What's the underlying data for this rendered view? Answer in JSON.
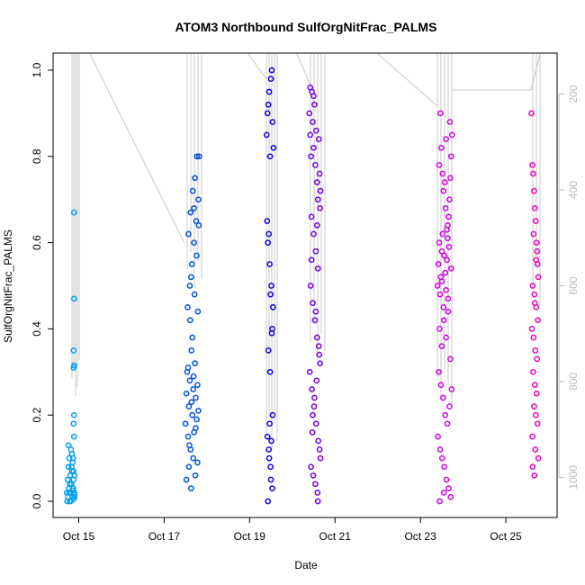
{
  "chart_data": {
    "type": "scatter",
    "title": "ATOM3 Northbound SulfOrgNitFrac_PALMS",
    "xlabel": "Date",
    "ylabel": "SulfOrgNitFrac_PALMS",
    "x_ticks": [
      "Oct 15",
      "Oct 17",
      "Oct 19",
      "Oct 21",
      "Oct 23",
      "Oct 25"
    ],
    "x_tick_days": [
      15,
      17,
      19,
      21,
      23,
      25
    ],
    "xlim_days": [
      14.4,
      26.2
    ],
    "y_ticks": [
      "0.0",
      "0.2",
      "0.4",
      "0.6",
      "0.8",
      "1.0"
    ],
    "y_tick_values": [
      0,
      0.2,
      0.4,
      0.6,
      0.8,
      1.0
    ],
    "ylim": [
      0,
      1.0
    ],
    "y2_ticks": [
      "200",
      "400",
      "600",
      "800",
      "1000"
    ],
    "y2_tick_values": [
      200,
      400,
      600,
      800,
      1000
    ],
    "y2lim": [
      1050,
      150
    ],
    "y2_label": "",
    "grid": false,
    "legend": "none",
    "secondary_line_color": "#c8c8c8",
    "series": [
      {
        "color": "#00a0f0",
        "x": [
          14.72,
          14.74,
          14.75,
          14.76,
          14.77,
          14.78,
          14.79,
          14.8,
          14.81,
          14.82,
          14.83,
          14.84,
          14.85,
          14.86,
          14.87,
          14.88,
          14.89,
          14.9,
          14.73,
          14.79,
          14.84,
          14.88,
          14.76,
          14.81,
          14.86,
          14.9,
          14.78,
          14.83,
          14.87,
          14.89,
          14.88,
          14.89,
          14.88,
          14.89,
          14.88,
          14.89,
          14.89,
          14.9,
          14.88,
          14.86
        ],
        "y": [
          0.02,
          0.05,
          0.01,
          0.08,
          0.03,
          0.1,
          0.0,
          0.06,
          0.02,
          0.12,
          0.04,
          0.07,
          0.01,
          0.09,
          0.03,
          0.05,
          0.02,
          0.01,
          0.0,
          0.04,
          0.11,
          0.07,
          0.13,
          0.0,
          0.03,
          0.06,
          0.02,
          0.08,
          0.1,
          0.15,
          0.18,
          0.2,
          0.31,
          0.315,
          0.35,
          0.47,
          0.67,
          0.015,
          0.005,
          0.025
        ]
      },
      {
        "color": "#0050e0",
        "x": [
          17.5,
          17.52,
          17.54,
          17.56,
          17.58,
          17.6,
          17.62,
          17.64,
          17.66,
          17.68,
          17.7,
          17.72,
          17.74,
          17.76,
          17.78,
          17.8,
          17.55,
          17.6,
          17.65,
          17.7,
          17.75,
          17.8,
          17.52,
          17.58,
          17.63,
          17.68,
          17.73,
          17.78,
          17.57,
          17.62,
          17.67,
          17.72,
          17.77,
          17.82,
          17.61,
          17.66,
          17.71,
          17.76,
          17.81,
          17.59,
          17.64,
          17.69,
          17.74,
          17.79,
          17.56,
          17.63,
          17.7
        ],
        "y": [
          0.18,
          0.25,
          0.3,
          0.15,
          0.22,
          0.28,
          0.12,
          0.35,
          0.2,
          0.26,
          0.16,
          0.32,
          0.24,
          0.19,
          0.27,
          0.21,
          0.45,
          0.5,
          0.55,
          0.6,
          0.65,
          0.7,
          0.05,
          0.08,
          0.03,
          0.1,
          0.06,
          0.09,
          0.62,
          0.67,
          0.72,
          0.75,
          0.8,
          0.8,
          0.42,
          0.38,
          0.48,
          0.57,
          0.64,
          0.13,
          0.23,
          0.29,
          0.17,
          0.44,
          0.31,
          0.52,
          0.68
        ]
      },
      {
        "color": "#1000e0",
        "x": [
          19.4,
          19.42,
          19.44,
          19.46,
          19.48,
          19.5,
          19.52,
          19.54,
          19.56,
          19.43,
          19.47,
          19.51,
          19.55,
          19.41,
          19.45,
          19.49,
          19.53,
          19.44,
          19.48,
          19.52,
          19.42,
          19.46,
          19.5,
          19.54,
          19.45,
          19.49,
          19.53,
          19.43,
          19.47,
          19.51
        ],
        "y": [
          0.85,
          0.9,
          0.92,
          0.95,
          0.8,
          0.98,
          1.0,
          0.88,
          0.82,
          0.6,
          0.55,
          0.5,
          0.45,
          0.65,
          0.62,
          0.48,
          0.4,
          0.35,
          0.3,
          0.39,
          0.15,
          0.1,
          0.05,
          0.2,
          0.12,
          0.08,
          0.03,
          0.0,
          0.18,
          0.14
        ]
      },
      {
        "color": "#7000e8",
        "x": [
          20.4,
          20.42,
          20.44,
          20.46,
          20.48,
          20.5,
          20.52,
          20.54,
          20.56,
          20.58,
          20.6,
          20.62,
          20.64,
          20.66,
          20.45,
          20.5,
          20.55,
          20.6,
          20.65,
          20.43,
          20.48,
          20.53,
          20.58,
          20.63,
          20.41,
          20.46,
          20.51,
          20.56,
          20.61,
          20.66,
          20.44,
          20.49,
          20.54,
          20.59,
          20.64,
          20.47,
          20.52,
          20.57,
          20.62,
          20.42,
          20.5,
          20.58,
          20.45,
          20.55,
          20.65,
          20.48,
          20.6
        ],
        "y": [
          0.9,
          0.85,
          0.8,
          0.95,
          0.88,
          0.82,
          0.92,
          0.78,
          0.86,
          0.74,
          0.7,
          0.84,
          0.76,
          0.72,
          0.66,
          0.62,
          0.58,
          0.54,
          0.68,
          0.5,
          0.46,
          0.42,
          0.38,
          0.34,
          0.3,
          0.26,
          0.22,
          0.18,
          0.14,
          0.1,
          0.08,
          0.06,
          0.04,
          0.02,
          0.12,
          0.16,
          0.24,
          0.28,
          0.36,
          0.96,
          0.94,
          0.64,
          0.56,
          0.44,
          0.32,
          0.2,
          0.0
        ]
      },
      {
        "color": "#d000e8",
        "x": [
          23.4,
          23.42,
          23.44,
          23.46,
          23.48,
          23.5,
          23.52,
          23.54,
          23.56,
          23.58,
          23.6,
          23.62,
          23.64,
          23.66,
          23.68,
          23.7,
          23.72,
          23.74,
          23.45,
          23.5,
          23.55,
          23.6,
          23.65,
          23.7,
          23.43,
          23.48,
          23.53,
          23.58,
          23.63,
          23.68,
          23.73,
          23.41,
          23.46,
          23.51,
          23.56,
          23.61,
          23.66,
          23.71,
          23.44,
          23.49,
          23.54,
          23.59,
          23.64,
          23.69,
          23.47,
          23.52,
          23.57,
          23.62,
          23.67,
          23.72,
          23.45,
          23.55,
          23.65,
          23.5,
          23.6
        ],
        "y": [
          0.5,
          0.55,
          0.6,
          0.48,
          0.52,
          0.58,
          0.62,
          0.45,
          0.57,
          0.53,
          0.49,
          0.56,
          0.61,
          0.66,
          0.7,
          0.75,
          0.8,
          0.85,
          0.4,
          0.36,
          0.42,
          0.38,
          0.44,
          0.33,
          0.3,
          0.27,
          0.24,
          0.2,
          0.18,
          0.22,
          0.26,
          0.15,
          0.12,
          0.1,
          0.08,
          0.05,
          0.03,
          0.01,
          0.78,
          0.82,
          0.72,
          0.68,
          0.64,
          0.88,
          0.9,
          0.76,
          0.74,
          0.63,
          0.59,
          0.54,
          0.0,
          0.02,
          0.47,
          0.51,
          0.84
        ]
      },
      {
        "color": "#f000b8",
        "x": [
          25.6,
          25.62,
          25.64,
          25.66,
          25.68,
          25.7,
          25.72,
          25.74,
          25.76,
          25.63,
          25.67,
          25.71,
          25.75,
          25.61,
          25.65,
          25.69,
          25.73,
          25.64,
          25.68,
          25.72,
          25.66,
          25.7,
          25.74,
          25.62,
          25.69,
          25.76,
          25.63,
          25.67,
          25.71,
          25.65,
          25.73,
          25.68
        ],
        "y": [
          0.9,
          0.78,
          0.76,
          0.72,
          0.68,
          0.65,
          0.6,
          0.55,
          0.52,
          0.5,
          0.48,
          0.45,
          0.42,
          0.4,
          0.38,
          0.35,
          0.33,
          0.3,
          0.27,
          0.25,
          0.22,
          0.2,
          0.18,
          0.15,
          0.12,
          0.1,
          0.08,
          0.06,
          0.56,
          0.62,
          0.58,
          0.46
        ]
      }
    ]
  }
}
